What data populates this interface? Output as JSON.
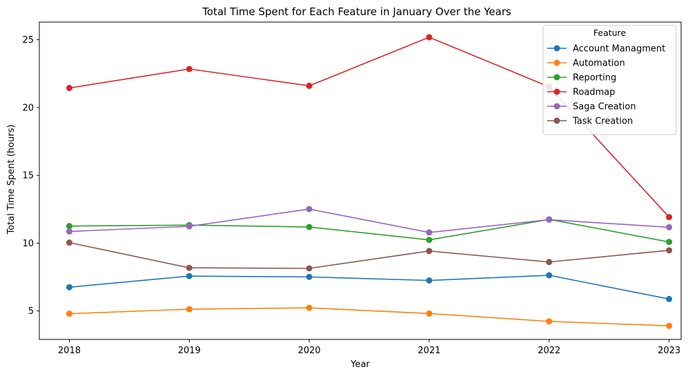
{
  "chart_data": {
    "type": "line",
    "title": "Total Time Spent for Each Feature in January Over the Years",
    "xlabel": "Year",
    "ylabel": "Total Time Spent (hours)",
    "categories": [
      "2018",
      "2019",
      "2020",
      "2021",
      "2022",
      "2023"
    ],
    "x": [
      2018,
      2019,
      2020,
      2021,
      2022,
      2023
    ],
    "xlim": [
      2017.75,
      2023.1
    ],
    "ylim": [
      2.9,
      26.3
    ],
    "yticks": [
      5,
      10,
      15,
      20,
      25
    ],
    "grid": false,
    "legend": {
      "title": "Feature",
      "placement": "top-right"
    },
    "series": [
      {
        "name": "Account Managment",
        "color": "#1f77b4",
        "values": [
          6.75,
          7.57,
          7.51,
          7.25,
          7.63,
          5.88
        ]
      },
      {
        "name": "Automation",
        "color": "#ff7f0e",
        "values": [
          4.8,
          5.13,
          5.23,
          4.81,
          4.23,
          3.9
        ]
      },
      {
        "name": "Reporting",
        "color": "#2ca02c",
        "values": [
          11.26,
          11.33,
          11.19,
          10.24,
          11.75,
          10.09
        ]
      },
      {
        "name": "Roadmap",
        "color": "#d62728",
        "values": [
          21.44,
          22.84,
          21.6,
          25.18,
          21.53,
          11.92
        ]
      },
      {
        "name": "Saga Creation",
        "color": "#9467bd",
        "values": [
          10.86,
          11.24,
          12.51,
          10.79,
          11.73,
          11.17
        ]
      },
      {
        "name": "Task Creation",
        "color": "#8c564b",
        "values": [
          10.04,
          8.18,
          8.14,
          9.42,
          8.61,
          9.47
        ]
      }
    ]
  }
}
